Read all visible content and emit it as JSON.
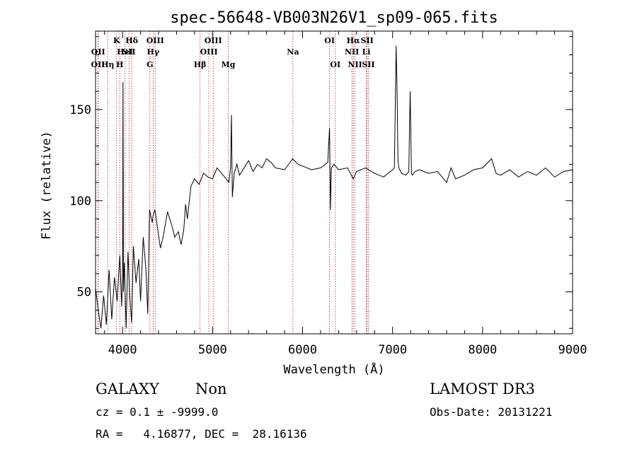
{
  "chart_data": {
    "type": "line",
    "title": "spec-56648-VB003N26V1_sp09-065.fits",
    "xlabel": "Wavelength (Å)",
    "ylabel": "Flux (relative)",
    "xlim": [
      3700,
      9000
    ],
    "ylim": [
      27,
      193
    ],
    "xticks": [
      4000,
      5000,
      6000,
      7000,
      8000,
      9000
    ],
    "yticks": [
      50,
      100,
      150
    ],
    "grid": false,
    "series": [
      {
        "x": [
          3700,
          3730,
          3760,
          3790,
          3820,
          3850,
          3880,
          3910,
          3940,
          3970,
          3990,
          4000,
          4005,
          4010,
          4020,
          4040,
          4060,
          4080,
          4101,
          4120,
          4150,
          4180,
          4200,
          4230,
          4260,
          4280,
          4300,
          4330,
          4340,
          4360,
          4380,
          4420,
          4450,
          4500,
          4550,
          4580,
          4620,
          4650,
          4680,
          4700,
          4720,
          4760,
          4800,
          4850,
          4900,
          4950,
          5000,
          5050,
          5100,
          5150,
          5180,
          5200,
          5210,
          5220,
          5240,
          5270,
          5300,
          5350,
          5400,
          5450,
          5500,
          5550,
          5600,
          5650,
          5700,
          5800,
          5890,
          5950,
          6000,
          6100,
          6200,
          6280,
          6300,
          6310,
          6320,
          6350,
          6400,
          6500,
          6563,
          6600,
          6700,
          6800,
          6900,
          6950,
          7000,
          7020,
          7040,
          7050,
          7060,
          7070,
          7100,
          7150,
          7180,
          7195,
          7210,
          7220,
          7250,
          7300,
          7400,
          7500,
          7600,
          7650,
          7700,
          7800,
          7900,
          8000,
          8100,
          8150,
          8200,
          8300,
          8400,
          8500,
          8600,
          8700,
          8800,
          8900,
          9000
        ],
        "y": [
          52,
          40,
          30,
          48,
          32,
          62,
          35,
          58,
          45,
          70,
          42,
          60,
          165,
          50,
          66,
          30,
          72,
          48,
          33,
          75,
          55,
          68,
          45,
          80,
          62,
          38,
          95,
          88,
          92,
          95,
          88,
          74,
          80,
          94,
          86,
          80,
          83,
          76,
          84,
          98,
          90,
          108,
          112,
          109,
          115,
          113,
          112,
          118,
          115,
          112,
          110,
          118,
          147,
          102,
          115,
          120,
          114,
          118,
          122,
          116,
          120,
          118,
          123,
          121,
          118,
          117,
          123,
          120,
          119,
          117,
          118,
          121,
          140,
          95,
          118,
          120,
          117,
          118,
          112,
          116,
          118,
          115,
          113,
          115,
          117,
          118,
          185,
          160,
          122,
          118,
          115,
          114,
          116,
          160,
          115,
          114,
          116,
          117,
          115,
          116,
          110,
          118,
          112,
          114,
          117,
          118,
          123,
          115,
          114,
          117,
          113,
          116,
          114,
          118,
          113,
          116,
          117
        ]
      }
    ],
    "lines": [
      {
        "wl": 3727,
        "labels": [
          "OII"
        ],
        "row": 3
      },
      {
        "wl": 3729,
        "labels": [
          "OII"
        ],
        "row": 2
      },
      {
        "wl": 3835,
        "labels": [
          "Hη"
        ],
        "row": 3
      },
      {
        "wl": 3934,
        "labels": [
          "K"
        ],
        "row": 1
      },
      {
        "wl": 3969,
        "labels": [
          "H"
        ],
        "row": 3
      },
      {
        "wl": 4026,
        "labels": [
          "HeI"
        ],
        "row": 2
      },
      {
        "wl": 4102,
        "labels": [
          "Hδ"
        ],
        "row": 1
      },
      {
        "wl": 4072,
        "labels": [
          "SII"
        ],
        "row": 2
      },
      {
        "wl": 4340,
        "labels": [
          "Hγ"
        ],
        "row": 2
      },
      {
        "wl": 4304,
        "labels": [
          "G"
        ],
        "row": 3
      },
      {
        "wl": 4363,
        "labels": [
          "OIII"
        ],
        "row": 1
      },
      {
        "wl": 4861,
        "labels": [
          "Hβ"
        ],
        "row": 3
      },
      {
        "wl": 4959,
        "labels": [
          "OIII"
        ],
        "row": 2
      },
      {
        "wl": 5007,
        "labels": [
          "OIII"
        ],
        "row": 1
      },
      {
        "wl": 5175,
        "labels": [
          "Mg"
        ],
        "row": 3
      },
      {
        "wl": 5893,
        "labels": [
          "Na"
        ],
        "row": 2
      },
      {
        "wl": 6300,
        "labels": [
          "OI"
        ],
        "row": 1
      },
      {
        "wl": 6364,
        "labels": [
          "OI"
        ],
        "row": 3
      },
      {
        "wl": 6548,
        "labels": [
          "NII"
        ],
        "row": 2
      },
      {
        "wl": 6563,
        "labels": [
          "Hα"
        ],
        "row": 1
      },
      {
        "wl": 6583,
        "labels": [
          "NII"
        ],
        "row": 3
      },
      {
        "wl": 6708,
        "labels": [
          "Li"
        ],
        "row": 2
      },
      {
        "wl": 6717,
        "labels": [
          "SII"
        ],
        "row": 1
      },
      {
        "wl": 6731,
        "labels": [
          "SII"
        ],
        "row": 3
      }
    ]
  },
  "footer": {
    "object_class": "GALAXY",
    "subclass": "Non",
    "survey": "LAMOST DR3",
    "cz": "cz = 0.1 ± -9999.0",
    "obs_date": "Obs-Date: 20131221",
    "coords": "RA =   4.16877, DEC =  28.16136"
  }
}
